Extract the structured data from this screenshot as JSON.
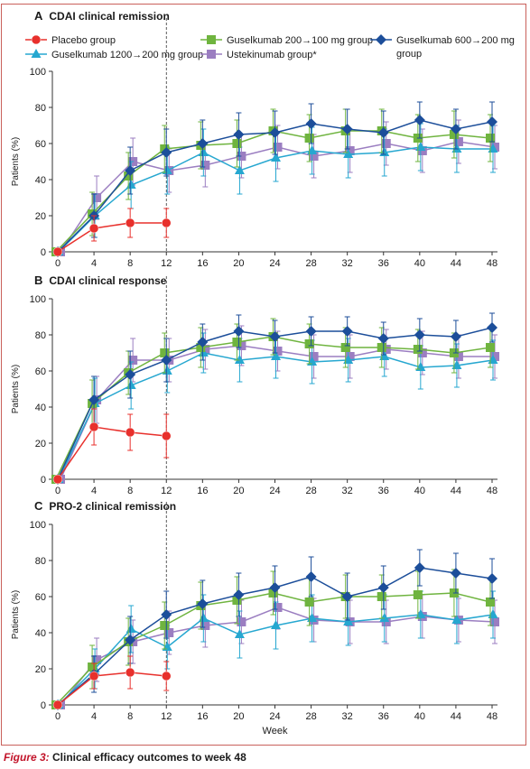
{
  "caption": {
    "label": "Figure 3:",
    "text": "Clinical efficacy outcomes to week 48"
  },
  "legend": [
    {
      "name": "Placebo group",
      "color": "#e8302c",
      "marker": "circle"
    },
    {
      "name": "Guselkumab 200→100 mg group",
      "color": "#6fb43f",
      "marker": "square"
    },
    {
      "name": "Guselkumab 600→200 mg group",
      "color": "#1c4e9a",
      "marker": "diamond"
    },
    {
      "name": "Guselkumab 1200→200 mg group",
      "color": "#26a7d0",
      "marker": "triangle"
    },
    {
      "name": "Ustekinumab group*",
      "color": "#9b7ec1",
      "marker": "square"
    }
  ],
  "xlabel": "Week",
  "ylabel": "Patients (%)",
  "chart_data": [
    {
      "type": "line",
      "panel": "A",
      "title": "CDAI clinical remission",
      "ylabel": "Patients (%)",
      "xlabel": "",
      "ylim": [
        0,
        100
      ],
      "yticks": [
        0,
        20,
        40,
        60,
        80,
        100
      ],
      "xticks": [
        0,
        4,
        8,
        12,
        16,
        20,
        24,
        28,
        32,
        36,
        40,
        44,
        48
      ],
      "xlim": [
        0,
        48
      ],
      "reference_line_x": 12,
      "series": [
        {
          "name": "Placebo group",
          "x": [
            0,
            4,
            8,
            12
          ],
          "values": [
            0,
            13,
            16,
            16
          ],
          "err": [
            0,
            7,
            8,
            8
          ]
        },
        {
          "name": "Guselkumab 200→100 mg group",
          "x": [
            0,
            4,
            8,
            12,
            16,
            20,
            24,
            28,
            32,
            36,
            40,
            44,
            48
          ],
          "values": [
            0,
            21,
            42,
            57,
            59,
            60,
            67,
            63,
            67,
            67,
            63,
            65,
            63
          ],
          "err": [
            0,
            12,
            13,
            13,
            13,
            13,
            12,
            13,
            12,
            12,
            13,
            13,
            13
          ]
        },
        {
          "name": "Guselkumab 600→200 mg group",
          "x": [
            0,
            4,
            8,
            12,
            16,
            20,
            24,
            28,
            32,
            36,
            40,
            44,
            48
          ],
          "values": [
            0,
            20,
            45,
            55,
            60,
            65,
            66,
            71,
            68,
            66,
            73,
            68,
            72
          ],
          "err": [
            0,
            12,
            13,
            13,
            13,
            12,
            12,
            11,
            11,
            12,
            10,
            11,
            11
          ]
        },
        {
          "name": "Guselkumab 1200→200 mg group",
          "x": [
            0,
            4,
            8,
            12,
            16,
            20,
            24,
            28,
            32,
            36,
            40,
            44,
            48
          ],
          "values": [
            0,
            20,
            37,
            45,
            55,
            45,
            52,
            56,
            54,
            55,
            58,
            57,
            57
          ],
          "err": [
            0,
            12,
            13,
            13,
            13,
            13,
            13,
            13,
            13,
            13,
            13,
            13,
            13
          ]
        },
        {
          "name": "Ustekinumab group*",
          "x": [
            0,
            4,
            8,
            12,
            16,
            20,
            24,
            28,
            32,
            36,
            40,
            44,
            48
          ],
          "values": [
            0,
            30,
            50,
            45,
            48,
            53,
            58,
            53,
            56,
            60,
            56,
            61,
            58
          ],
          "err": [
            0,
            12,
            13,
            12,
            12,
            12,
            12,
            12,
            12,
            12,
            12,
            12,
            12
          ]
        }
      ]
    },
    {
      "type": "line",
      "panel": "B",
      "title": "CDAI clinical response",
      "ylabel": "Patients (%)",
      "xlabel": "",
      "ylim": [
        0,
        100
      ],
      "yticks": [
        0,
        20,
        40,
        60,
        80,
        100
      ],
      "xticks": [
        0,
        4,
        8,
        12,
        16,
        20,
        24,
        28,
        32,
        36,
        40,
        44,
        48
      ],
      "xlim": [
        0,
        48
      ],
      "reference_line_x": 12,
      "series": [
        {
          "name": "Placebo group",
          "x": [
            0,
            4,
            8,
            12
          ],
          "values": [
            0,
            29,
            26,
            24
          ],
          "err": [
            0,
            10,
            10,
            12
          ]
        },
        {
          "name": "Guselkumab 200→100 mg group",
          "x": [
            0,
            4,
            8,
            12,
            16,
            20,
            24,
            28,
            32,
            36,
            40,
            44,
            48
          ],
          "values": [
            0,
            42,
            59,
            70,
            73,
            76,
            79,
            75,
            73,
            73,
            72,
            70,
            73
          ],
          "err": [
            0,
            13,
            12,
            11,
            11,
            10,
            10,
            11,
            11,
            11,
            11,
            11,
            11
          ]
        },
        {
          "name": "Guselkumab 600→200 mg group",
          "x": [
            0,
            4,
            8,
            12,
            16,
            20,
            24,
            28,
            32,
            36,
            40,
            44,
            48
          ],
          "values": [
            0,
            44,
            58,
            66,
            76,
            82,
            79,
            82,
            82,
            78,
            80,
            79,
            84
          ],
          "err": [
            0,
            13,
            13,
            12,
            10,
            9,
            9,
            8,
            8,
            9,
            9,
            9,
            8
          ]
        },
        {
          "name": "Guselkumab 1200→200 mg group",
          "x": [
            0,
            4,
            8,
            12,
            16,
            20,
            24,
            28,
            32,
            36,
            40,
            44,
            48
          ],
          "values": [
            0,
            42,
            52,
            60,
            70,
            66,
            68,
            65,
            66,
            68,
            62,
            63,
            66
          ],
          "err": [
            0,
            14,
            13,
            12,
            11,
            12,
            12,
            12,
            12,
            11,
            12,
            12,
            11
          ]
        },
        {
          "name": "Ustekinumab group*",
          "x": [
            0,
            4,
            8,
            12,
            16,
            20,
            24,
            28,
            32,
            36,
            40,
            44,
            48
          ],
          "values": [
            0,
            44,
            66,
            66,
            72,
            74,
            71,
            68,
            68,
            72,
            70,
            68,
            68
          ],
          "err": [
            0,
            13,
            12,
            12,
            11,
            11,
            11,
            12,
            12,
            11,
            12,
            12,
            12
          ]
        }
      ]
    },
    {
      "type": "line",
      "panel": "C",
      "title": "PRO-2 clinical remission",
      "ylabel": "Patients (%)",
      "xlabel": "Week",
      "ylim": [
        0,
        100
      ],
      "yticks": [
        0,
        20,
        40,
        60,
        80,
        100
      ],
      "xticks": [
        0,
        4,
        8,
        12,
        16,
        20,
        24,
        28,
        32,
        36,
        40,
        44,
        48
      ],
      "xlim": [
        0,
        48
      ],
      "reference_line_x": 12,
      "series": [
        {
          "name": "Placebo group",
          "x": [
            0,
            4,
            8,
            12
          ],
          "values": [
            0,
            16,
            18,
            16
          ],
          "err": [
            0,
            7,
            9,
            8
          ]
        },
        {
          "name": "Guselkumab 200→100 mg group",
          "x": [
            0,
            4,
            8,
            12,
            16,
            20,
            24,
            28,
            32,
            36,
            40,
            44,
            48
          ],
          "values": [
            0,
            21,
            35,
            44,
            55,
            58,
            62,
            57,
            60,
            60,
            61,
            62,
            57
          ],
          "err": [
            0,
            12,
            13,
            13,
            13,
            13,
            12,
            13,
            12,
            12,
            13,
            13,
            13
          ]
        },
        {
          "name": "Guselkumab 600→200 mg group",
          "x": [
            0,
            4,
            8,
            12,
            16,
            20,
            24,
            28,
            32,
            36,
            40,
            44,
            48
          ],
          "values": [
            0,
            17,
            36,
            50,
            56,
            61,
            65,
            71,
            60,
            65,
            76,
            73,
            70
          ],
          "err": [
            0,
            10,
            13,
            13,
            13,
            12,
            12,
            11,
            13,
            12,
            10,
            11,
            11
          ]
        },
        {
          "name": "Guselkumab 1200→200 mg group",
          "x": [
            0,
            4,
            8,
            12,
            16,
            20,
            24,
            28,
            32,
            36,
            40,
            44,
            48
          ],
          "values": [
            0,
            20,
            42,
            32,
            48,
            39,
            44,
            48,
            46,
            48,
            50,
            47,
            50
          ],
          "err": [
            0,
            11,
            13,
            12,
            13,
            13,
            13,
            13,
            13,
            13,
            13,
            13,
            13
          ]
        },
        {
          "name": "Ustekinumab group*",
          "x": [
            0,
            4,
            8,
            12,
            16,
            20,
            24,
            28,
            32,
            36,
            40,
            44,
            48
          ],
          "values": [
            0,
            25,
            35,
            40,
            44,
            46,
            54,
            47,
            46,
            46,
            49,
            47,
            46
          ],
          "err": [
            0,
            12,
            12,
            12,
            12,
            12,
            12,
            12,
            12,
            12,
            12,
            12,
            12
          ]
        }
      ]
    }
  ]
}
